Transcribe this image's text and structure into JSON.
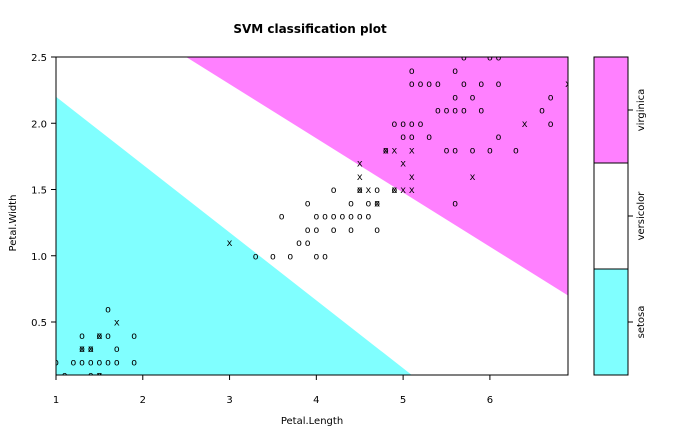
{
  "chart_data": {
    "type": "scatter",
    "title": "SVM classification plot",
    "xlabel": "Petal.Length",
    "ylabel": "Petal.Width",
    "xlim": [
      1.0,
      6.9
    ],
    "ylim": [
      0.1,
      2.5
    ],
    "x_ticks": [
      1,
      2,
      3,
      4,
      5,
      6
    ],
    "y_ticks": [
      0.5,
      1.0,
      1.5,
      2.0,
      2.5
    ],
    "y_tick_labels": [
      "0.5",
      "1.0",
      "1.5",
      "2.0",
      "2.5"
    ],
    "legend": {
      "placement": "right colorbar",
      "classes": [
        "setosa",
        "versicolor",
        "virginica"
      ],
      "colors": [
        "#80ffff",
        "#ffffff",
        "#ff80ff"
      ]
    },
    "regions": {
      "setosa_boundary": [
        [
          1.0,
          2.2
        ],
        [
          5.1,
          0.1
        ]
      ],
      "virginica_boundary": [
        [
          2.5,
          2.5
        ],
        [
          6.9,
          0.7
        ]
      ]
    },
    "point_colors": {
      "setosa": "#000000",
      "versicolor": "#ff0000",
      "virginica": "#008000"
    },
    "series": [
      {
        "name": "setosa",
        "points": [
          [
            1.0,
            0.2,
            "o"
          ],
          [
            1.1,
            0.1,
            "o"
          ],
          [
            1.2,
            0.2,
            "o"
          ],
          [
            1.3,
            0.2,
            "o"
          ],
          [
            1.3,
            0.3,
            "o"
          ],
          [
            1.3,
            0.4,
            "o"
          ],
          [
            1.4,
            0.2,
            "o"
          ],
          [
            1.4,
            0.3,
            "o"
          ],
          [
            1.4,
            0.1,
            "o"
          ],
          [
            1.5,
            0.2,
            "o"
          ],
          [
            1.5,
            0.4,
            "o"
          ],
          [
            1.5,
            0.1,
            "o"
          ],
          [
            1.6,
            0.2,
            "o"
          ],
          [
            1.6,
            0.4,
            "o"
          ],
          [
            1.6,
            0.6,
            "o"
          ],
          [
            1.7,
            0.2,
            "o"
          ],
          [
            1.7,
            0.3,
            "o"
          ],
          [
            1.9,
            0.2,
            "o"
          ],
          [
            1.9,
            0.4,
            "o"
          ],
          [
            1.3,
            0.3,
            "x"
          ],
          [
            1.4,
            0.3,
            "x"
          ],
          [
            1.5,
            0.4,
            "x"
          ],
          [
            1.7,
            0.5,
            "x"
          ],
          [
            1.5,
            0.1,
            "x"
          ]
        ]
      },
      {
        "name": "versicolor",
        "points": [
          [
            3.0,
            1.1,
            "x"
          ],
          [
            3.3,
            1.0,
            "o"
          ],
          [
            3.5,
            1.0,
            "o"
          ],
          [
            3.6,
            1.3,
            "o"
          ],
          [
            3.7,
            1.0,
            "o"
          ],
          [
            3.8,
            1.1,
            "o"
          ],
          [
            3.9,
            1.1,
            "o"
          ],
          [
            3.9,
            1.2,
            "o"
          ],
          [
            3.9,
            1.4,
            "o"
          ],
          [
            4.0,
            1.0,
            "o"
          ],
          [
            4.0,
            1.2,
            "o"
          ],
          [
            4.0,
            1.3,
            "o"
          ],
          [
            4.1,
            1.0,
            "o"
          ],
          [
            4.1,
            1.3,
            "o"
          ],
          [
            4.2,
            1.2,
            "o"
          ],
          [
            4.2,
            1.3,
            "o"
          ],
          [
            4.2,
            1.5,
            "o"
          ],
          [
            4.3,
            1.3,
            "o"
          ],
          [
            4.4,
            1.2,
            "o"
          ],
          [
            4.4,
            1.3,
            "o"
          ],
          [
            4.4,
            1.4,
            "o"
          ],
          [
            4.5,
            1.3,
            "o"
          ],
          [
            4.5,
            1.5,
            "o"
          ],
          [
            4.5,
            1.5,
            "x"
          ],
          [
            4.5,
            1.6,
            "x"
          ],
          [
            4.6,
            1.3,
            "o"
          ],
          [
            4.6,
            1.4,
            "o"
          ],
          [
            4.6,
            1.5,
            "x"
          ],
          [
            4.7,
            1.2,
            "o"
          ],
          [
            4.7,
            1.4,
            "o"
          ],
          [
            4.7,
            1.5,
            "o"
          ],
          [
            4.7,
            1.4,
            "x"
          ],
          [
            4.8,
            1.8,
            "o"
          ],
          [
            4.9,
            1.5,
            "o"
          ],
          [
            5.0,
            1.7,
            "x"
          ],
          [
            5.1,
            1.6,
            "x"
          ]
        ]
      },
      {
        "name": "virginica",
        "points": [
          [
            4.5,
            1.7,
            "x"
          ],
          [
            4.8,
            1.8,
            "x"
          ],
          [
            4.9,
            1.8,
            "x"
          ],
          [
            4.9,
            1.5,
            "x"
          ],
          [
            5.0,
            1.5,
            "x"
          ],
          [
            5.1,
            1.5,
            "x"
          ],
          [
            4.9,
            2.0,
            "o"
          ],
          [
            5.0,
            1.9,
            "o"
          ],
          [
            5.0,
            2.0,
            "o"
          ],
          [
            5.1,
            1.9,
            "o"
          ],
          [
            5.1,
            2.0,
            "o"
          ],
          [
            5.1,
            2.3,
            "o"
          ],
          [
            5.1,
            2.4,
            "o"
          ],
          [
            5.1,
            1.8,
            "x"
          ],
          [
            5.2,
            2.0,
            "o"
          ],
          [
            5.2,
            2.3,
            "o"
          ],
          [
            5.3,
            1.9,
            "o"
          ],
          [
            5.3,
            2.3,
            "o"
          ],
          [
            5.4,
            2.1,
            "o"
          ],
          [
            5.4,
            2.3,
            "o"
          ],
          [
            5.5,
            1.8,
            "o"
          ],
          [
            5.5,
            2.1,
            "o"
          ],
          [
            5.6,
            1.8,
            "o"
          ],
          [
            5.6,
            2.1,
            "o"
          ],
          [
            5.6,
            2.2,
            "o"
          ],
          [
            5.6,
            2.4,
            "o"
          ],
          [
            5.6,
            1.4,
            "o"
          ],
          [
            5.7,
            2.1,
            "o"
          ],
          [
            5.7,
            2.3,
            "o"
          ],
          [
            5.7,
            2.5,
            "o"
          ],
          [
            5.8,
            1.8,
            "o"
          ],
          [
            5.8,
            2.2,
            "o"
          ],
          [
            5.8,
            1.6,
            "x"
          ],
          [
            5.9,
            2.1,
            "o"
          ],
          [
            5.9,
            2.3,
            "o"
          ],
          [
            6.0,
            1.8,
            "o"
          ],
          [
            6.0,
            2.5,
            "o"
          ],
          [
            6.1,
            1.9,
            "o"
          ],
          [
            6.1,
            2.3,
            "o"
          ],
          [
            6.1,
            2.5,
            "o"
          ],
          [
            6.3,
            1.8,
            "o"
          ],
          [
            6.4,
            2.0,
            "x"
          ],
          [
            6.6,
            2.1,
            "o"
          ],
          [
            6.7,
            2.0,
            "o"
          ],
          [
            6.7,
            2.2,
            "o"
          ],
          [
            6.9,
            2.3,
            "x"
          ]
        ]
      }
    ]
  }
}
